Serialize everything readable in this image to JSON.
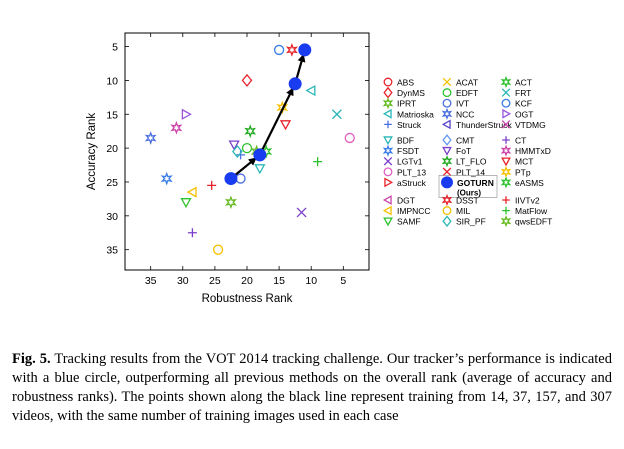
{
  "chart_data": {
    "type": "scatter",
    "title": "",
    "xlabel": "Robustness Rank",
    "ylabel": "Accuracy Rank",
    "xlim": [
      39,
      1
    ],
    "ylim": [
      3,
      38
    ],
    "x_reversed": true,
    "y_reversed": true,
    "xticks": [
      35,
      30,
      25,
      20,
      15,
      10,
      5
    ],
    "yticks": [
      5,
      10,
      15,
      20,
      25,
      30,
      35
    ],
    "grid": false,
    "legend_placement": "right",
    "series": [
      {
        "name": "ABS",
        "marker": "circle",
        "color": "#e8222a",
        "points": []
      },
      {
        "name": "ACAT",
        "marker": "x",
        "color": "#f5c000",
        "points": []
      },
      {
        "name": "ACT",
        "marker": "star",
        "color": "#2cc22c",
        "points": []
      },
      {
        "name": "DynMS",
        "marker": "diamond",
        "color": "#e8222a",
        "points": [
          [
            20,
            10
          ]
        ]
      },
      {
        "name": "EDFT",
        "marker": "circle",
        "color": "#2cc22c",
        "points": [
          [
            20,
            20
          ]
        ]
      },
      {
        "name": "FRT",
        "marker": "x",
        "color": "#2ab7b7",
        "points": [
          [
            6,
            15
          ]
        ]
      },
      {
        "name": "IPRT",
        "marker": "star",
        "color": "#66bb22",
        "points": [
          [
            18.5,
            20.5
          ]
        ]
      },
      {
        "name": "IVT",
        "marker": "circle",
        "color": "#4a6fe0",
        "points": [
          [
            21,
            24.5
          ]
        ]
      },
      {
        "name": "KCF",
        "marker": "circle",
        "color": "#3a7ce8",
        "points": [
          [
            15,
            5.5
          ]
        ]
      },
      {
        "name": "Matrioska",
        "marker": "triangle-left",
        "color": "#2ab7b7",
        "points": [
          [
            10,
            11.5
          ]
        ]
      },
      {
        "name": "NCC",
        "marker": "star",
        "color": "#4a6fe0",
        "points": [
          [
            35,
            18.5
          ]
        ]
      },
      {
        "name": "OGT",
        "marker": "triangle-right",
        "color": "#9955dd",
        "points": [
          [
            29.5,
            15
          ]
        ]
      },
      {
        "name": "Struck",
        "marker": "plus",
        "color": "#4a6fe0",
        "points": [
          [
            21,
            21
          ]
        ]
      },
      {
        "name": "ThunderStruck",
        "marker": "triangle-left",
        "color": "#5a44cc",
        "points": []
      },
      {
        "name": "VTDMG",
        "marker": "x",
        "color": "#cc44aa",
        "points": []
      },
      {
        "name": "BDF",
        "marker": "triangle-down",
        "color": "#2ab7b7",
        "points": [
          [
            18,
            23
          ]
        ]
      },
      {
        "name": "CMT",
        "marker": "diamond",
        "color": "#6699ee",
        "points": []
      },
      {
        "name": "CT",
        "marker": "plus",
        "color": "#7a3fcc",
        "points": [
          [
            28.5,
            32.5
          ]
        ]
      },
      {
        "name": "FSDT",
        "marker": "star",
        "color": "#3a7ce8",
        "points": [
          [
            32.5,
            24.5
          ]
        ]
      },
      {
        "name": "FoT",
        "marker": "triangle-down",
        "color": "#7a3fcc",
        "points": [
          [
            22,
            19.5
          ]
        ]
      },
      {
        "name": "HMMTxD",
        "marker": "star",
        "color": "#cc44aa",
        "points": [
          [
            31,
            17
          ]
        ]
      },
      {
        "name": "LGTv1",
        "marker": "x",
        "color": "#7a3fcc",
        "points": [
          [
            11.5,
            29.5
          ]
        ]
      },
      {
        "name": "LT_FLO",
        "marker": "star",
        "color": "#22aa22",
        "points": [
          [
            19.5,
            17.5
          ]
        ]
      },
      {
        "name": "MCT",
        "marker": "triangle-down",
        "color": "#e8222a",
        "points": [
          [
            14,
            16.5
          ]
        ]
      },
      {
        "name": "PLT_13",
        "marker": "circle",
        "color": "#e060c0",
        "points": [
          [
            4,
            18.5
          ]
        ]
      },
      {
        "name": "PLT_14",
        "marker": "x",
        "color": "#e8222a",
        "points": []
      },
      {
        "name": "PTp",
        "marker": "star",
        "color": "#f5c000",
        "points": [
          [
            14.5,
            14
          ]
        ]
      },
      {
        "name": "aStruck",
        "marker": "triangle-right",
        "color": "#e8222a",
        "points": []
      },
      {
        "name": "GOTURN (Ours)",
        "marker": "filled-circle",
        "color": "#1a3cf0",
        "points": [
          [
            22.5,
            24.5
          ],
          [
            18,
            21
          ],
          [
            12.5,
            10.5
          ],
          [
            11,
            5.5
          ]
        ],
        "connected": true
      },
      {
        "name": "eASMS",
        "marker": "star",
        "color": "#2cc22c",
        "points": [
          [
            17,
            20.5
          ]
        ]
      },
      {
        "name": "DGT",
        "marker": "triangle-left",
        "color": "#cc44aa",
        "points": []
      },
      {
        "name": "DSST",
        "marker": "star",
        "color": "#e8222a",
        "points": [
          [
            13,
            5.5
          ]
        ]
      },
      {
        "name": "IIVTv2",
        "marker": "plus",
        "color": "#e8222a",
        "points": [
          [
            25.5,
            25.5
          ]
        ]
      },
      {
        "name": "IMPNCC",
        "marker": "triangle-left",
        "color": "#f5c000",
        "points": [
          [
            28.5,
            26.5
          ]
        ]
      },
      {
        "name": "MIL",
        "marker": "circle",
        "color": "#f5c000",
        "points": [
          [
            24.5,
            35
          ]
        ]
      },
      {
        "name": "MatFlow",
        "marker": "plus",
        "color": "#2cc22c",
        "points": [
          [
            9,
            22
          ]
        ]
      },
      {
        "name": "SAMF",
        "marker": "triangle-down",
        "color": "#2cc22c",
        "points": [
          [
            29.5,
            28
          ]
        ]
      },
      {
        "name": "SIR_PF",
        "marker": "diamond",
        "color": "#2ab7b7",
        "points": [
          [
            21.5,
            20.5
          ]
        ]
      },
      {
        "name": "qwsEDFT",
        "marker": "star",
        "color": "#66bb22",
        "points": [
          [
            22.5,
            28
          ]
        ]
      }
    ]
  },
  "caption": {
    "label": "Fig. 5.",
    "text": " Tracking results from the VOT 2014 tracking challenge. Our tracker’s performance is indicated with a blue circle, outperforming all previous methods on the overall rank (average of accuracy and robustness ranks). The points shown along the black line represent training from 14, 37, 157, and 307 videos, with the same number of training images used in each case"
  },
  "colors": {
    "axis": "#000000",
    "arrow": "#000000",
    "goturn": "#1a3cf0"
  }
}
